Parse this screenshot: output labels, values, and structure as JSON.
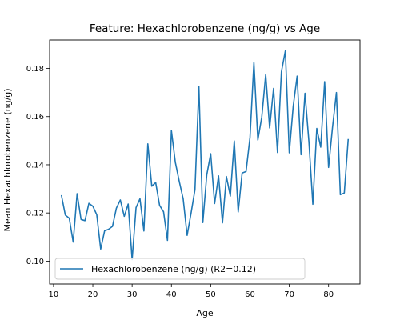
{
  "chart_data": {
    "type": "line",
    "title": "Feature: Hexachlorobenzene (ng/g) vs Age",
    "xlabel": "Age",
    "ylabel": "Mean Hexachlorobenzene (ng/g)",
    "xlim": [
      9,
      88
    ],
    "ylim": [
      0.0905,
      0.1918
    ],
    "xticks": [
      10,
      20,
      30,
      40,
      50,
      60,
      70,
      80
    ],
    "yticks": [
      0.1,
      0.12,
      0.14,
      0.16,
      0.18
    ],
    "ytick_labels": [
      "0.10",
      "0.12",
      "0.14",
      "0.16",
      "0.18"
    ],
    "grid": false,
    "legend_position": "lower-left",
    "series": [
      {
        "name": "Hexachlorobenzene (ng/g) (R2=0.12)",
        "color": "#1f77b4",
        "x": [
          12,
          13,
          14,
          15,
          16,
          17,
          18,
          19,
          20,
          21,
          22,
          23,
          24,
          25,
          26,
          27,
          28,
          29,
          30,
          31,
          32,
          33,
          34,
          35,
          36,
          37,
          38,
          39,
          40,
          41,
          42,
          43,
          44,
          45,
          46,
          47,
          48,
          49,
          50,
          51,
          52,
          53,
          54,
          55,
          56,
          57,
          58,
          59,
          60,
          61,
          62,
          63,
          64,
          65,
          66,
          67,
          68,
          69,
          70,
          71,
          72,
          73,
          74,
          75,
          76,
          77,
          78,
          79,
          80,
          81,
          82,
          83,
          84,
          85
        ],
        "y": [
          0.1274,
          0.1191,
          0.1178,
          0.1079,
          0.128,
          0.1173,
          0.1168,
          0.124,
          0.1228,
          0.1193,
          0.105,
          0.1126,
          0.1132,
          0.1144,
          0.122,
          0.1254,
          0.1186,
          0.1237,
          0.1006,
          0.1222,
          0.1259,
          0.1125,
          0.1487,
          0.1311,
          0.1326,
          0.1231,
          0.1205,
          0.1086,
          0.1542,
          0.141,
          0.1331,
          0.1258,
          0.1107,
          0.1199,
          0.1297,
          0.1725,
          0.116,
          0.1358,
          0.1446,
          0.1239,
          0.1354,
          0.1159,
          0.1351,
          0.127,
          0.1499,
          0.1204,
          0.1366,
          0.1372,
          0.1513,
          0.1824,
          0.1503,
          0.1598,
          0.1774,
          0.1553,
          0.1717,
          0.1451,
          0.1786,
          0.1873,
          0.145,
          0.1643,
          0.1768,
          0.1442,
          0.1697,
          0.1495,
          0.1236,
          0.1551,
          0.1473,
          0.1745,
          0.1389,
          0.1555,
          0.17,
          0.1276,
          0.1283,
          0.1507
        ]
      }
    ]
  }
}
